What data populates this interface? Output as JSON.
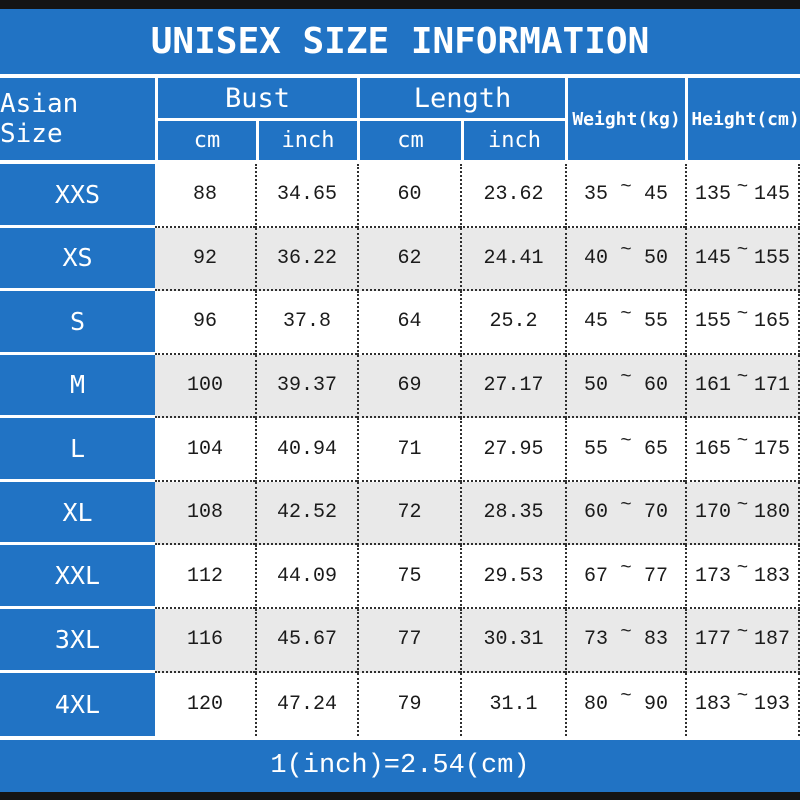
{
  "colors": {
    "blue": "#2173c4",
    "alt_row": "#e9e9e9",
    "border_bar": "#141414",
    "dotted_line": "#2f2f2f"
  },
  "symbols": {
    "tilde": "~"
  },
  "header": {
    "size_col": "Asian Size",
    "bust": "Bust",
    "length": "Length",
    "cm": "cm",
    "inch": "inch",
    "weight": "Weight(kg)",
    "height": "Height(cm)"
  },
  "chart_data": {
    "type": "table",
    "title": "UNISEX SIZE INFORMATION",
    "footnote": "1(inch)=2.54(cm)",
    "columns": [
      "Asian Size",
      "Bust cm",
      "Bust inch",
      "Length cm",
      "Length inch",
      "Weight(kg)",
      "Height(cm)"
    ],
    "rows": [
      {
        "size": "XXS",
        "bust_cm": "88",
        "bust_in": "34.65",
        "len_cm": "60",
        "len_in": "23.62",
        "w_min": "35",
        "w_max": "45",
        "h_min": "135",
        "h_max": "145"
      },
      {
        "size": "XS",
        "bust_cm": "92",
        "bust_in": "36.22",
        "len_cm": "62",
        "len_in": "24.41",
        "w_min": "40",
        "w_max": "50",
        "h_min": "145",
        "h_max": "155"
      },
      {
        "size": "S",
        "bust_cm": "96",
        "bust_in": "37.8",
        "len_cm": "64",
        "len_in": "25.2",
        "w_min": "45",
        "w_max": "55",
        "h_min": "155",
        "h_max": "165"
      },
      {
        "size": "M",
        "bust_cm": "100",
        "bust_in": "39.37",
        "len_cm": "69",
        "len_in": "27.17",
        "w_min": "50",
        "w_max": "60",
        "h_min": "161",
        "h_max": "171"
      },
      {
        "size": "L",
        "bust_cm": "104",
        "bust_in": "40.94",
        "len_cm": "71",
        "len_in": "27.95",
        "w_min": "55",
        "w_max": "65",
        "h_min": "165",
        "h_max": "175"
      },
      {
        "size": "XL",
        "bust_cm": "108",
        "bust_in": "42.52",
        "len_cm": "72",
        "len_in": "28.35",
        "w_min": "60",
        "w_max": "70",
        "h_min": "170",
        "h_max": "180"
      },
      {
        "size": "XXL",
        "bust_cm": "112",
        "bust_in": "44.09",
        "len_cm": "75",
        "len_in": "29.53",
        "w_min": "67",
        "w_max": "77",
        "h_min": "173",
        "h_max": "183"
      },
      {
        "size": "3XL",
        "bust_cm": "116",
        "bust_in": "45.67",
        "len_cm": "77",
        "len_in": "30.31",
        "w_min": "73",
        "w_max": "83",
        "h_min": "177",
        "h_max": "187"
      },
      {
        "size": "4XL",
        "bust_cm": "120",
        "bust_in": "47.24",
        "len_cm": "79",
        "len_in": "31.1",
        "w_min": "80",
        "w_max": "90",
        "h_min": "183",
        "h_max": "193"
      }
    ]
  }
}
